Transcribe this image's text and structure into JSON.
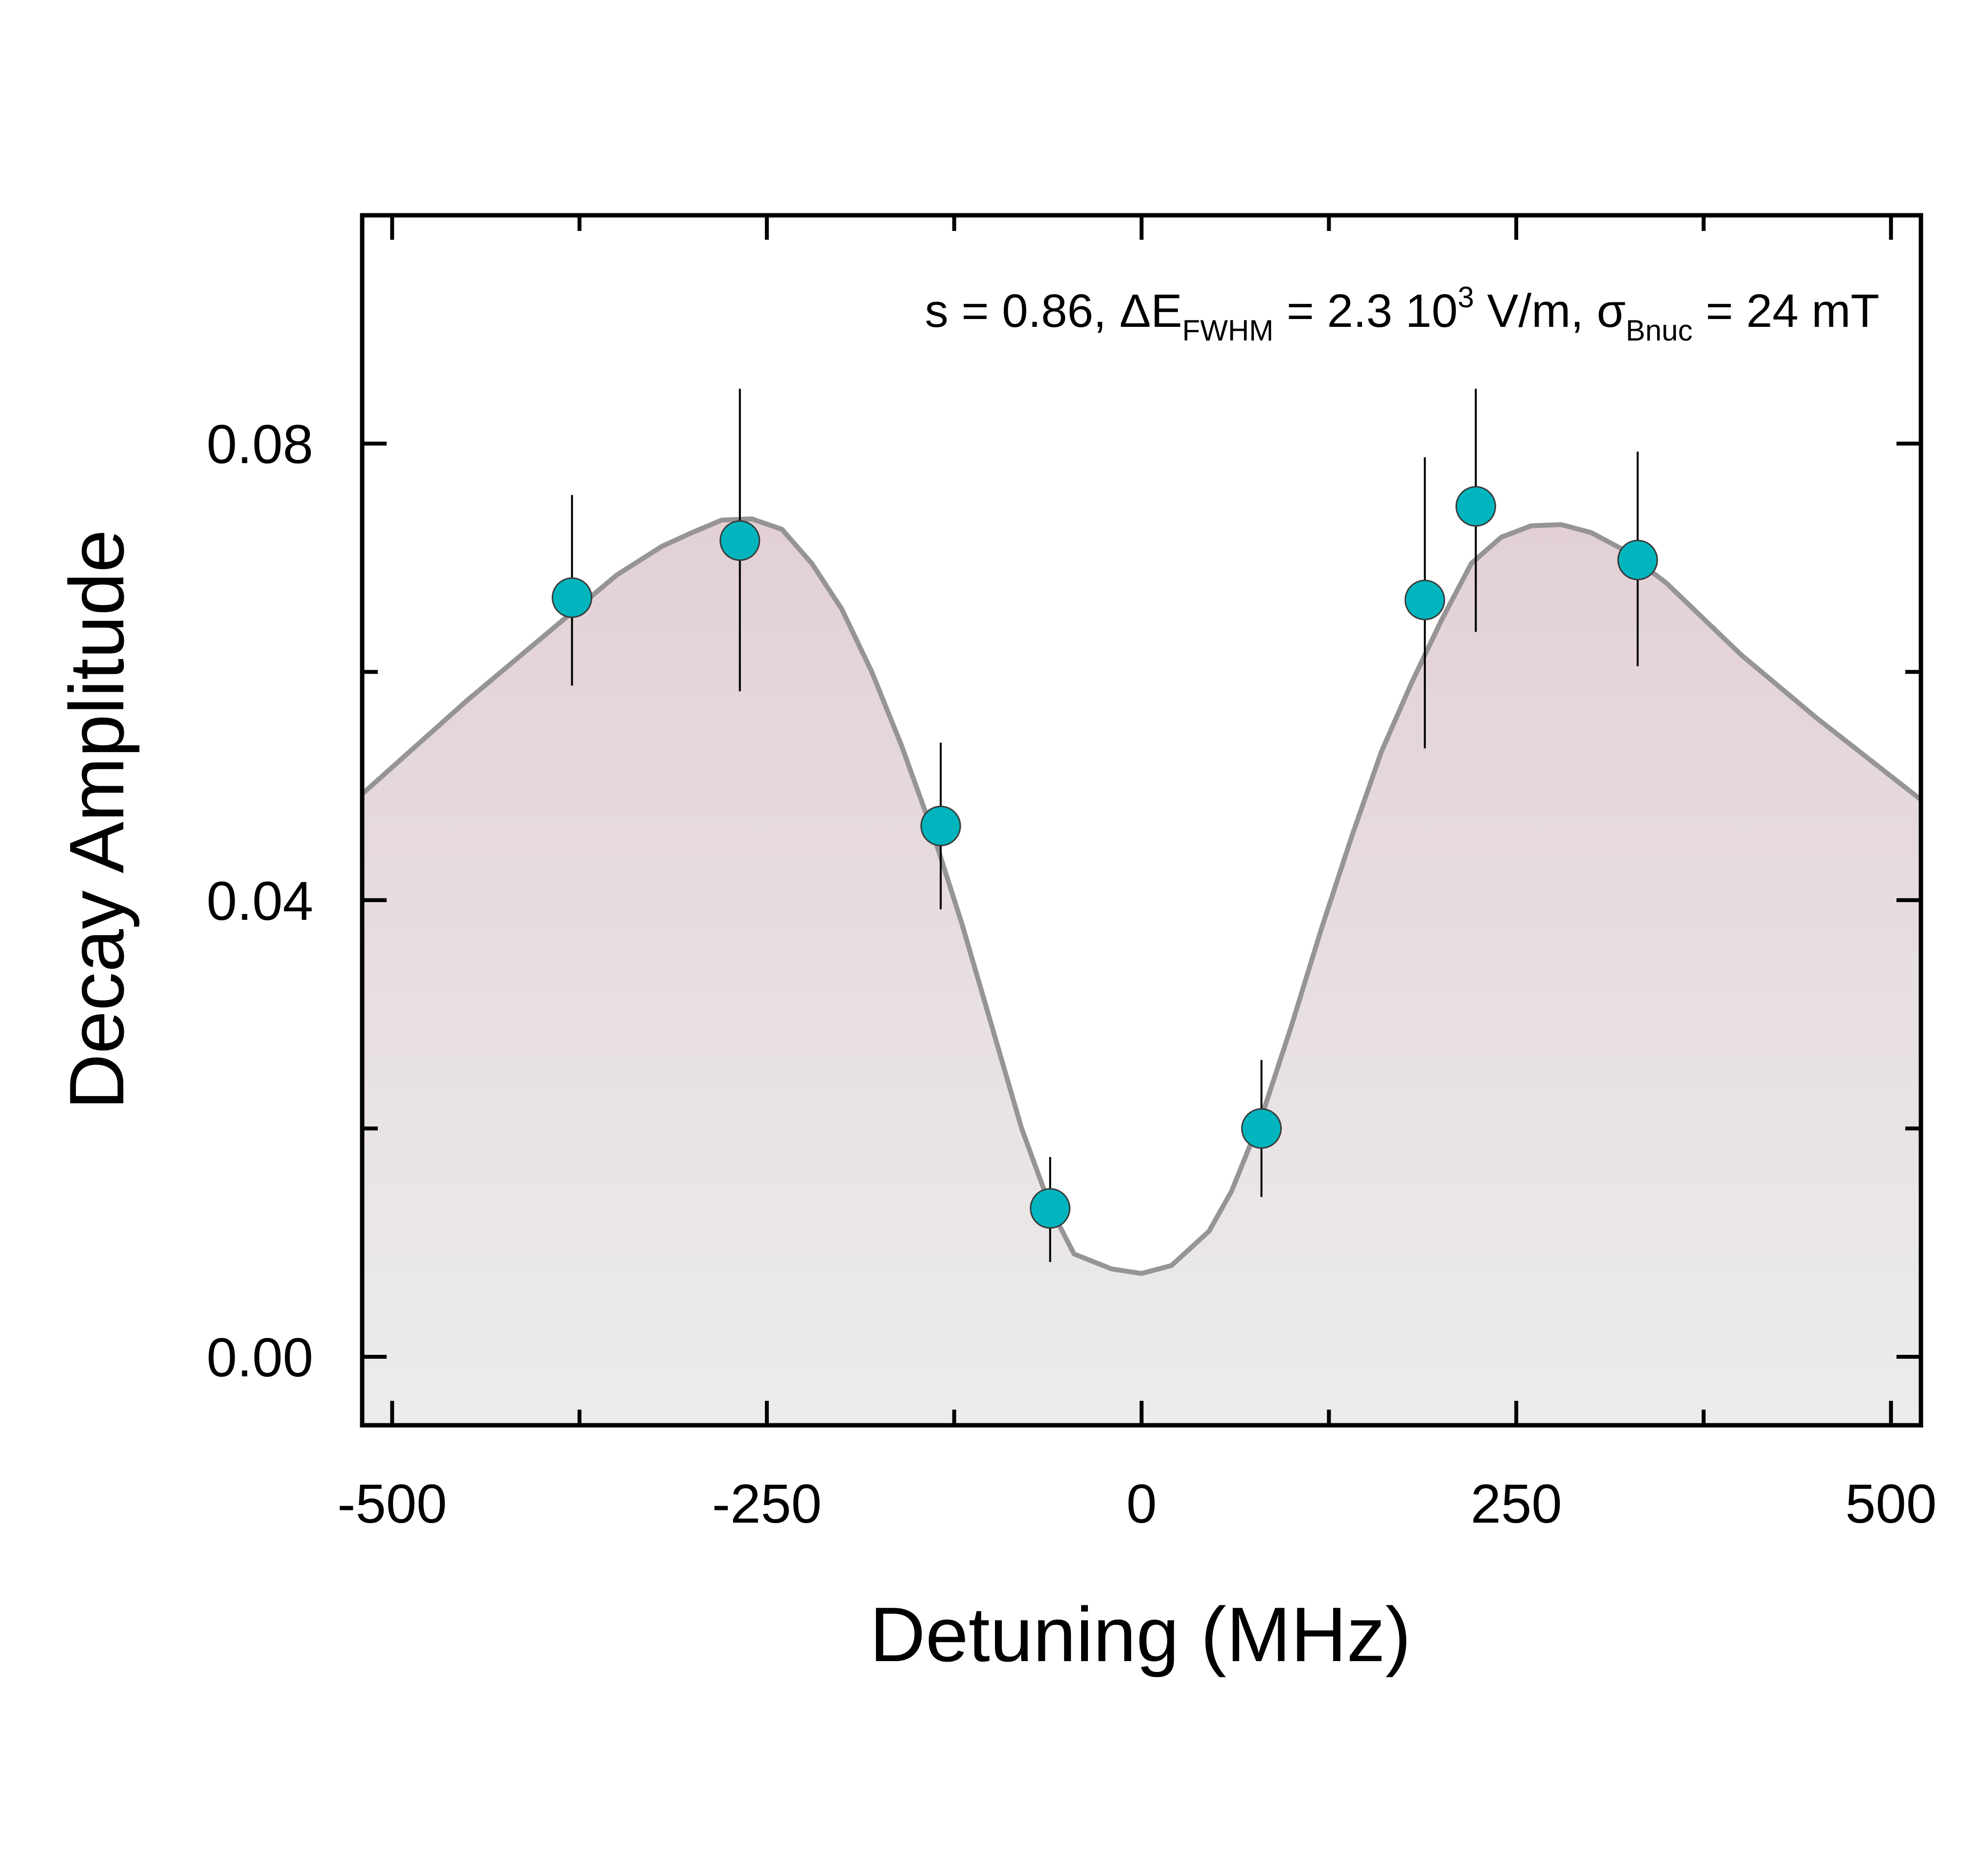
{
  "chart_data": {
    "type": "scatter",
    "xlabel": "Detuning (MHz)",
    "ylabel": "Decay Amplitude",
    "xlim": [
      -520,
      520
    ],
    "ylim": [
      -0.006,
      0.1
    ],
    "xticks": [
      -500,
      -250,
      0,
      250,
      500
    ],
    "xtick_labels": [
      "-500",
      "-250",
      "0",
      "250",
      "500"
    ],
    "xminor": [
      -375,
      -125,
      125,
      375
    ],
    "yticks": [
      0.0,
      0.04,
      0.08
    ],
    "ytick_labels": [
      "0.00",
      "0.04",
      "0.08"
    ],
    "yminor": [
      0.02,
      0.06
    ],
    "annotation": {
      "s_part": "s = 0.86, ",
      "delta": "ΔE",
      "delta_sub": "FWHM",
      "e_part": " = 2.3 10",
      "e_sup": "3",
      "unit_part": " V/m, ",
      "sigma": "σ",
      "sigma_sub": "Bnuc",
      "b_part": " = 24 mT"
    },
    "series": [
      {
        "kind": "points",
        "color": "#00b5bd",
        "x": [
          -380,
          -268,
          -134,
          -61,
          80,
          189,
          223,
          331
        ],
        "y": [
          0.0665,
          0.0715,
          0.0465,
          0.013,
          0.02,
          0.0663,
          0.0745,
          0.0698
        ],
        "yerr_low": [
          0.0588,
          0.0583,
          0.0392,
          0.0083,
          0.014,
          0.0533,
          0.0635,
          0.0605
        ],
        "yerr_high": [
          0.0755,
          0.0848,
          0.0538,
          0.0175,
          0.026,
          0.0788,
          0.0848,
          0.0793
        ]
      },
      {
        "kind": "fit",
        "color": "#969496",
        "x": [
          -520,
          -450,
          -400,
          -350,
          -320,
          -300,
          -280,
          -260,
          -240,
          -220,
          -200,
          -180,
          -160,
          -140,
          -120,
          -100,
          -80,
          -60,
          -45,
          -20,
          0,
          20,
          45,
          60,
          80,
          100,
          120,
          140,
          160,
          180,
          200,
          220,
          240,
          260,
          280,
          300,
          320,
          350,
          400,
          450,
          520
        ],
        "y": [
          0.0493,
          0.0575,
          0.063,
          0.0685,
          0.071,
          0.0722,
          0.0733,
          0.0734,
          0.0725,
          0.0695,
          0.0655,
          0.06,
          0.0535,
          0.0462,
          0.038,
          0.029,
          0.02,
          0.0128,
          0.009,
          0.0077,
          0.0073,
          0.008,
          0.011,
          0.0145,
          0.021,
          0.029,
          0.0375,
          0.0455,
          0.053,
          0.059,
          0.0645,
          0.0695,
          0.0718,
          0.0728,
          0.0729,
          0.0722,
          0.0708,
          0.0678,
          0.0615,
          0.056,
          0.0488
        ]
      }
    ],
    "grid": false,
    "legend": "none"
  }
}
